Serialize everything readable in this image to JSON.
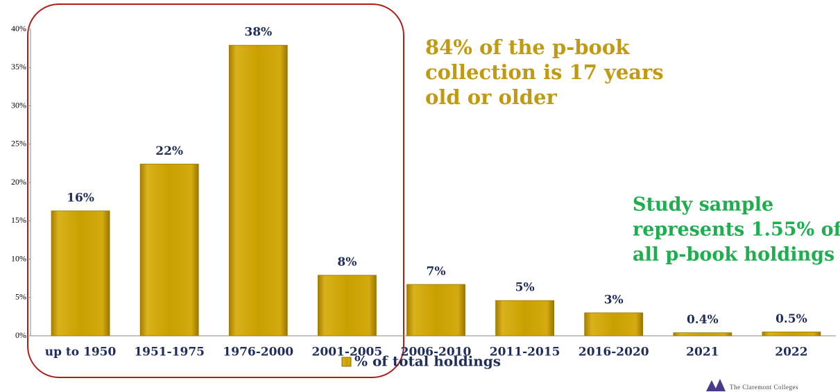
{
  "chart_data": {
    "type": "bar",
    "categories": [
      "up to 1950",
      "1951-1975",
      "1976-2000",
      "2001-2005",
      "2006-2010",
      "2011-2015",
      "2016-2020",
      "2021",
      "2022"
    ],
    "series": [
      {
        "name": "% of total holdings",
        "color": "#caa000",
        "values": [
          16.3,
          22.4,
          37.9,
          7.9,
          6.7,
          4.6,
          3.0,
          0.4,
          0.5
        ],
        "value_labels": [
          "16%",
          "22%",
          "38%",
          "8%",
          "7%",
          "5%",
          "3%",
          "0.4%",
          "0.5%"
        ]
      }
    ],
    "ylim": [
      0,
      40
    ],
    "yticks": [
      {
        "value": 0,
        "label": "0%"
      },
      {
        "value": 5,
        "label": "5%"
      },
      {
        "value": 10,
        "label": "10%"
      },
      {
        "value": 15,
        "label": "15%"
      },
      {
        "value": 20,
        "label": "20%"
      },
      {
        "value": 25,
        "label": "25%"
      },
      {
        "value": 30,
        "label": "30%"
      },
      {
        "value": 35,
        "label": "35%"
      },
      {
        "value": 40,
        "label": "40%"
      }
    ],
    "legend": "bottom",
    "annotations": [
      {
        "lines": [
          "84% of the p-book",
          "collection is 17 years",
          "old or older"
        ],
        "color": "#c29a12"
      },
      {
        "lines": [
          "Study sample",
          "represents 1.55% of",
          "all p-book holdings"
        ],
        "color": "#1fae4f"
      }
    ],
    "logo": "The Claremont Colleges"
  }
}
